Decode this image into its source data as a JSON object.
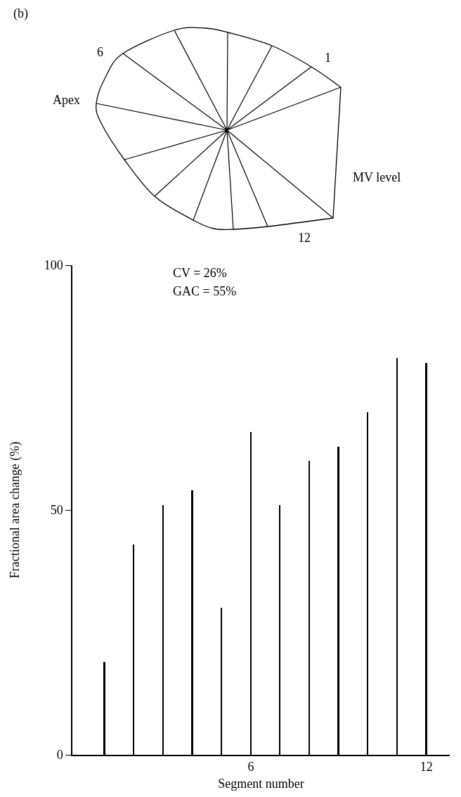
{
  "chart_data": {
    "type": "bar",
    "xlabel": "Segment number",
    "ylabel": "Fractional area change (%)",
    "x": [
      1,
      2,
      3,
      4,
      5,
      6,
      7,
      8,
      9,
      10,
      11,
      12
    ],
    "values": [
      19,
      43,
      51,
      54,
      30,
      66,
      51,
      60,
      63,
      70,
      81,
      80
    ],
    "color": "#000000",
    "xlim": [
      -0.1,
      12.8
    ],
    "xticks": [
      6,
      12
    ],
    "ylim": [
      0,
      100
    ],
    "yticks": [
      0,
      50,
      100
    ],
    "grid": false,
    "annotations": [
      "(b)",
      "6",
      "1",
      "Apex",
      "MV level",
      "12",
      "CV = 26%",
      "GAC = 55%"
    ]
  }
}
